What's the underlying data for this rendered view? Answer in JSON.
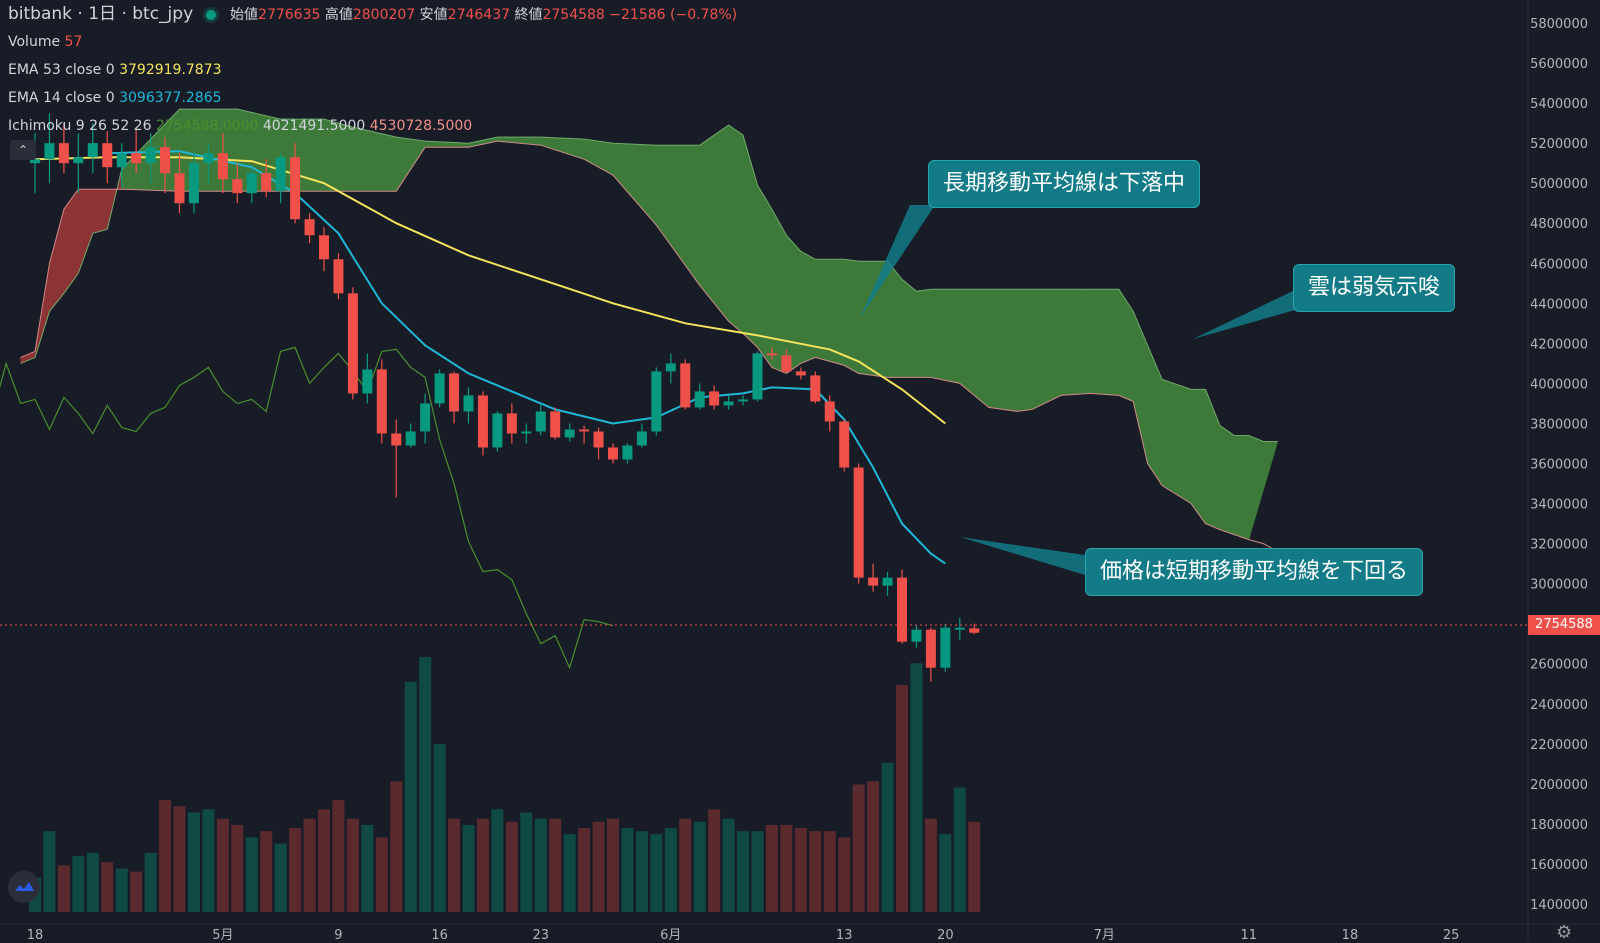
{
  "header": {
    "symbol": "bitbank · 1日 · btc_jpy",
    "ohlc": [
      {
        "label": "始値",
        "value": "2776635"
      },
      {
        "label": "高値",
        "value": "2800207"
      },
      {
        "label": "安値",
        "value": "2746437"
      },
      {
        "label": "終値",
        "value": "2754588"
      },
      {
        "label": "",
        "value": "−21586 (−0.78%)"
      }
    ]
  },
  "indicators": {
    "volume": {
      "label": "Volume",
      "value": "57"
    },
    "ema53": {
      "label": "EMA 53 close 0",
      "value": "3792919.7873"
    },
    "ema14": {
      "label": "EMA 14 close 0",
      "value": "3096377.2865"
    },
    "ichimoku": {
      "label": "Ichimoku 9 26 52 26",
      "v1": "2754588.0000",
      "v2": "4021491.5000",
      "v3": "4530728.5000"
    }
  },
  "annotations": {
    "long_ma": "長期移動平均線は下落中",
    "cloud": "雲は弱気示唆",
    "price": "価格は短期移動平均線を下回る"
  },
  "current_price_label": "2754588",
  "colors": {
    "background": "#181c27",
    "up": "#089981",
    "down": "#f0504a",
    "ema53": "#f5e35c",
    "ema14": "#1fb7d7",
    "lagging": "#4a8f2e",
    "cloud_bull": "#3d7a3a",
    "cloud_bear": "#8c3335",
    "callout": "#137b87"
  },
  "icons": {
    "collapse": "chevron-up-icon",
    "logo": "tradingview-logo-icon",
    "settings": "gear-icon"
  },
  "chart_data": {
    "type": "candlestick",
    "y_axis": {
      "range": [
        1300000,
        5900000
      ],
      "ticks": [
        1400000,
        1600000,
        1800000,
        2000000,
        2200000,
        2400000,
        2600000,
        2800000,
        3000000,
        3200000,
        3400000,
        3600000,
        3800000,
        4000000,
        4200000,
        4400000,
        4600000,
        4800000,
        5000000,
        5200000,
        5400000,
        5600000,
        5800000
      ],
      "tick_labels": [
        "1400000",
        "1600000",
        "1800000",
        "2000000",
        "2200000",
        "2400000",
        "2600000",
        "2800000",
        "3000000",
        "3200000",
        "3400000",
        "3600000",
        "3800000",
        "4000000",
        "4200000",
        "4400000",
        "4600000",
        "4800000",
        "5000000",
        "5200000",
        "5400000",
        "5600000",
        "5800000"
      ]
    },
    "x_axis": {
      "ticks": [
        {
          "day": 0,
          "label": "18"
        },
        {
          "day": 13,
          "label": "5月"
        },
        {
          "day": 21,
          "label": "9"
        },
        {
          "day": 28,
          "label": "16"
        },
        {
          "day": 35,
          "label": "23"
        },
        {
          "day": 44,
          "label": "6月"
        },
        {
          "day": 56,
          "label": "13"
        },
        {
          "day": 63,
          "label": "20"
        },
        {
          "day": 74,
          "label": "7月"
        },
        {
          "day": 84,
          "label": "11"
        },
        {
          "day": 91,
          "label": "18"
        },
        {
          "day": 98,
          "label": "25"
        }
      ]
    },
    "candles": [
      [
        5100000,
        5250000,
        4950000,
        5120000
      ],
      [
        5120000,
        5350000,
        5000000,
        5200000
      ],
      [
        5200000,
        5300000,
        5050000,
        5100000
      ],
      [
        5100000,
        5250000,
        4950000,
        5130000
      ],
      [
        5130000,
        5300000,
        5050000,
        5200000
      ],
      [
        5200000,
        5260000,
        5000000,
        5080000
      ],
      [
        5080000,
        5200000,
        4980000,
        5150000
      ],
      [
        5150000,
        5280000,
        5050000,
        5100000
      ],
      [
        5100000,
        5250000,
        5000000,
        5180000
      ],
      [
        5180000,
        5230000,
        4950000,
        5050000
      ],
      [
        5050000,
        5150000,
        4850000,
        4900000
      ],
      [
        4900000,
        5150000,
        4850000,
        5100000
      ],
      [
        5100000,
        5200000,
        5000000,
        5150000
      ],
      [
        5150000,
        5250000,
        4950000,
        5020000
      ],
      [
        5020000,
        5100000,
        4900000,
        4950000
      ],
      [
        4950000,
        5080000,
        4900000,
        5050000
      ],
      [
        5050000,
        5120000,
        4930000,
        4960000
      ],
      [
        4960000,
        5150000,
        4900000,
        5130000
      ],
      [
        5130000,
        5200000,
        4800000,
        4820000
      ],
      [
        4820000,
        4850000,
        4700000,
        4740000
      ],
      [
        4740000,
        4780000,
        4560000,
        4620000
      ],
      [
        4620000,
        4650000,
        4420000,
        4450000
      ],
      [
        4450000,
        4480000,
        3920000,
        3950000
      ],
      [
        3950000,
        4150000,
        3900000,
        4070000
      ],
      [
        4070000,
        4120000,
        3700000,
        3750000
      ],
      [
        3750000,
        3820000,
        3430000,
        3690000
      ],
      [
        3690000,
        3800000,
        3680000,
        3760000
      ],
      [
        3760000,
        3950000,
        3700000,
        3900000
      ],
      [
        3900000,
        4070000,
        3880000,
        4050000
      ],
      [
        4050000,
        4060000,
        3800000,
        3860000
      ],
      [
        3860000,
        3980000,
        3800000,
        3940000
      ],
      [
        3940000,
        3960000,
        3640000,
        3680000
      ],
      [
        3680000,
        3860000,
        3660000,
        3850000
      ],
      [
        3850000,
        3900000,
        3700000,
        3750000
      ],
      [
        3750000,
        3800000,
        3700000,
        3760000
      ],
      [
        3760000,
        3900000,
        3740000,
        3860000
      ],
      [
        3860000,
        3880000,
        3720000,
        3730000
      ],
      [
        3730000,
        3800000,
        3710000,
        3770000
      ],
      [
        3770000,
        3790000,
        3700000,
        3760000
      ],
      [
        3760000,
        3780000,
        3620000,
        3680000
      ],
      [
        3680000,
        3700000,
        3600000,
        3620000
      ],
      [
        3620000,
        3700000,
        3600000,
        3690000
      ],
      [
        3690000,
        3800000,
        3680000,
        3760000
      ],
      [
        3760000,
        4080000,
        3740000,
        4060000
      ],
      [
        4060000,
        4150000,
        4000000,
        4100000
      ],
      [
        4100000,
        4120000,
        3870000,
        3880000
      ],
      [
        3880000,
        4000000,
        3870000,
        3960000
      ],
      [
        3960000,
        3990000,
        3870000,
        3890000
      ],
      [
        3890000,
        3940000,
        3870000,
        3910000
      ],
      [
        3910000,
        3940000,
        3890000,
        3920000
      ],
      [
        3920000,
        4160000,
        3910000,
        4150000
      ],
      [
        4150000,
        4180000,
        4120000,
        4140000
      ],
      [
        4140000,
        4170000,
        4050000,
        4060000
      ],
      [
        4060000,
        4080000,
        4020000,
        4040000
      ],
      [
        4040000,
        4060000,
        3900000,
        3910000
      ],
      [
        3910000,
        3940000,
        3760000,
        3810000
      ],
      [
        3810000,
        3820000,
        3560000,
        3580000
      ],
      [
        3580000,
        3600000,
        3000000,
        3030000
      ],
      [
        3030000,
        3100000,
        2960000,
        2990000
      ],
      [
        2990000,
        3060000,
        2940000,
        3030000
      ],
      [
        3030000,
        3070000,
        2700000,
        2710000
      ],
      [
        2710000,
        2790000,
        2680000,
        2770000
      ],
      [
        2770000,
        2780000,
        2510000,
        2580000
      ],
      [
        2580000,
        2800000,
        2560000,
        2780000
      ],
      [
        2780000,
        2830000,
        2720000,
        2780000
      ],
      [
        2776635,
        2800207,
        2746437,
        2754588
      ]
    ],
    "volumes": [
      55,
      130,
      75,
      90,
      95,
      80,
      70,
      65,
      95,
      180,
      170,
      160,
      165,
      150,
      140,
      120,
      130,
      110,
      135,
      150,
      165,
      180,
      150,
      140,
      120,
      210,
      370,
      410,
      270,
      150,
      140,
      150,
      165,
      145,
      160,
      150,
      150,
      125,
      135,
      145,
      150,
      135,
      130,
      125,
      135,
      150,
      145,
      165,
      150,
      130,
      130,
      140,
      140,
      135,
      130,
      130,
      120,
      205,
      210,
      240,
      365,
      400,
      150,
      125,
      200,
      145
    ],
    "ema53": [
      [
        0,
        5120000
      ],
      [
        5,
        5130000
      ],
      [
        10,
        5130000
      ],
      [
        15,
        5110000
      ],
      [
        20,
        5000000
      ],
      [
        25,
        4800000
      ],
      [
        30,
        4640000
      ],
      [
        35,
        4520000
      ],
      [
        40,
        4400000
      ],
      [
        45,
        4300000
      ],
      [
        50,
        4240000
      ],
      [
        55,
        4170000
      ],
      [
        57,
        4110000
      ],
      [
        60,
        3970000
      ],
      [
        63,
        3800000
      ]
    ],
    "ema14": [
      [
        5,
        5150000
      ],
      [
        10,
        5160000
      ],
      [
        15,
        5080000
      ],
      [
        18,
        4950000
      ],
      [
        21,
        4750000
      ],
      [
        24,
        4400000
      ],
      [
        27,
        4190000
      ],
      [
        30,
        4050000
      ],
      [
        33,
        3960000
      ],
      [
        36,
        3870000
      ],
      [
        40,
        3800000
      ],
      [
        43,
        3830000
      ],
      [
        46,
        3930000
      ],
      [
        49,
        3950000
      ],
      [
        51,
        3980000
      ],
      [
        54,
        3970000
      ],
      [
        56,
        3820000
      ],
      [
        58,
        3580000
      ],
      [
        60,
        3300000
      ],
      [
        62,
        3150000
      ],
      [
        63,
        3100000
      ]
    ],
    "lagging_span": [
      [
        -8,
        3850000
      ],
      [
        -6,
        3750000
      ],
      [
        -5,
        3870000
      ],
      [
        -4,
        3960000
      ],
      [
        -3,
        3830000
      ],
      [
        -2,
        4100000
      ],
      [
        -1,
        3900000
      ],
      [
        0,
        3920000
      ],
      [
        1,
        3770000
      ],
      [
        2,
        3930000
      ],
      [
        3,
        3850000
      ],
      [
        4,
        3750000
      ],
      [
        5,
        3890000
      ],
      [
        6,
        3780000
      ],
      [
        7,
        3760000
      ],
      [
        8,
        3850000
      ],
      [
        9,
        3880000
      ],
      [
        10,
        3990000
      ],
      [
        11,
        4030000
      ],
      [
        12,
        4080000
      ],
      [
        13,
        3960000
      ],
      [
        14,
        3900000
      ],
      [
        15,
        3920000
      ],
      [
        16,
        3860000
      ],
      [
        17,
        4160000
      ],
      [
        18,
        4180000
      ],
      [
        19,
        4000000
      ],
      [
        20,
        4080000
      ],
      [
        21,
        4150000
      ],
      [
        22,
        4060000
      ],
      [
        23,
        3960000
      ],
      [
        24,
        4160000
      ],
      [
        25,
        4170000
      ],
      [
        26,
        4080000
      ],
      [
        27,
        4030000
      ],
      [
        28,
        3720000
      ],
      [
        29,
        3500000
      ],
      [
        30,
        3210000
      ],
      [
        31,
        3060000
      ],
      [
        32,
        3070000
      ],
      [
        33,
        3020000
      ],
      [
        34,
        2850000
      ],
      [
        35,
        2700000
      ],
      [
        36,
        2740000
      ],
      [
        37,
        2580000
      ],
      [
        38,
        2820000
      ],
      [
        39,
        2810000
      ],
      [
        40,
        2790000
      ]
    ],
    "cloud_span_a": [
      [
        -1,
        4100000
      ],
      [
        0,
        4130000
      ],
      [
        1,
        4360000
      ],
      [
        2,
        4450000
      ],
      [
        3,
        4550000
      ],
      [
        4,
        4750000
      ],
      [
        5,
        4770000
      ],
      [
        6,
        5070000
      ],
      [
        10,
        5370000
      ],
      [
        14,
        5370000
      ],
      [
        17,
        5320000
      ],
      [
        20,
        5320000
      ],
      [
        22,
        5280000
      ],
      [
        25,
        5230000
      ],
      [
        27,
        5210000
      ],
      [
        30,
        5200000
      ],
      [
        32,
        5230000
      ],
      [
        35,
        5230000
      ],
      [
        38,
        5220000
      ],
      [
        40,
        5200000
      ],
      [
        43,
        5190000
      ],
      [
        46,
        5190000
      ],
      [
        48,
        5290000
      ],
      [
        49,
        5240000
      ],
      [
        50,
        4990000
      ],
      [
        51,
        4870000
      ],
      [
        52,
        4740000
      ],
      [
        53,
        4660000
      ],
      [
        54,
        4620000
      ],
      [
        56,
        4620000
      ],
      [
        57,
        4610000
      ],
      [
        59,
        4610000
      ],
      [
        60,
        4520000
      ],
      [
        61,
        4460000
      ],
      [
        62,
        4470000
      ],
      [
        68,
        4470000
      ],
      [
        73,
        4470000
      ],
      [
        75,
        4470000
      ],
      [
        76,
        4360000
      ],
      [
        77,
        4190000
      ],
      [
        78,
        4020000
      ],
      [
        80,
        3970000
      ],
      [
        81,
        3970000
      ],
      [
        82,
        3790000
      ],
      [
        83,
        3740000
      ],
      [
        84,
        3740000
      ],
      [
        85,
        3710000
      ],
      [
        86,
        3710000
      ]
    ],
    "cloud_span_b": [
      [
        -1,
        4130000
      ],
      [
        0,
        4160000
      ],
      [
        1,
        4600000
      ],
      [
        2,
        4870000
      ],
      [
        3,
        4970000
      ],
      [
        4,
        4970000
      ],
      [
        5,
        4970000
      ],
      [
        6,
        4970000
      ],
      [
        10,
        4960000
      ],
      [
        14,
        4960000
      ],
      [
        17,
        4960000
      ],
      [
        20,
        4960000
      ],
      [
        22,
        4960000
      ],
      [
        25,
        4960000
      ],
      [
        27,
        5180000
      ],
      [
        30,
        5180000
      ],
      [
        32,
        5210000
      ],
      [
        35,
        5190000
      ],
      [
        38,
        5120000
      ],
      [
        40,
        5040000
      ],
      [
        43,
        4790000
      ],
      [
        46,
        4490000
      ],
      [
        48,
        4310000
      ],
      [
        49,
        4250000
      ],
      [
        50,
        4180000
      ],
      [
        51,
        4080000
      ],
      [
        52,
        4050000
      ],
      [
        53,
        4100000
      ],
      [
        54,
        4130000
      ],
      [
        56,
        4090000
      ],
      [
        57,
        4050000
      ],
      [
        59,
        4030000
      ],
      [
        60,
        4030000
      ],
      [
        62,
        4030000
      ],
      [
        64,
        4000000
      ],
      [
        66,
        3880000
      ],
      [
        68,
        3860000
      ],
      [
        69,
        3870000
      ],
      [
        71,
        3940000
      ],
      [
        73,
        3950000
      ],
      [
        75,
        3940000
      ],
      [
        76,
        3910000
      ],
      [
        77,
        3600000
      ],
      [
        78,
        3490000
      ],
      [
        80,
        3400000
      ],
      [
        81,
        3300000
      ],
      [
        82,
        3270000
      ],
      [
        84,
        3220000
      ],
      [
        85,
        3200000
      ],
      [
        86,
        3160000
      ]
    ]
  }
}
